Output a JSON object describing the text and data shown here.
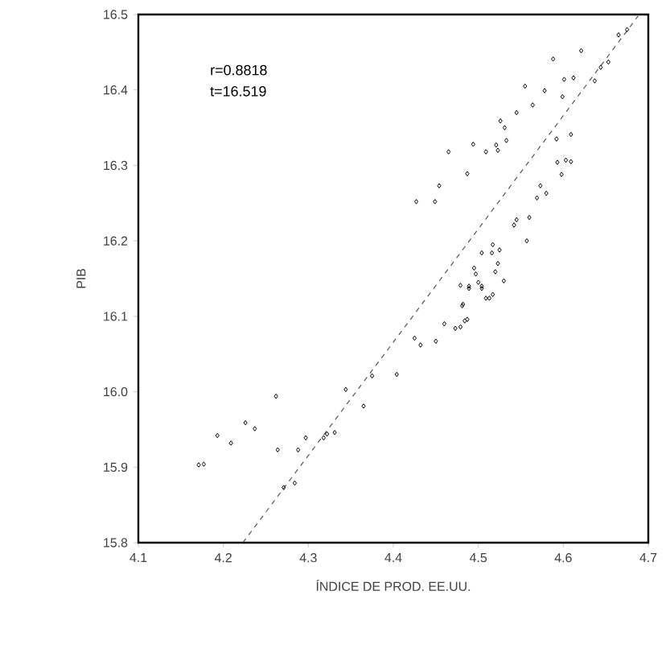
{
  "chart_data": {
    "type": "scatter",
    "xlabel": "ÍNDICE DE PROD. EE.UU.",
    "ylabel": "PIB",
    "annotations": [
      "r=0.8818",
      "t=16.519"
    ],
    "xlim": [
      4.1,
      4.7
    ],
    "ylim": [
      15.8,
      16.5
    ],
    "xticks": [
      4.1,
      4.2,
      4.3,
      4.4,
      4.5,
      4.6,
      4.7
    ],
    "yticks": [
      15.8,
      15.9,
      {
        "value": 16.0,
        "label": "16.0"
      },
      16.1,
      16.2,
      16.3,
      16.4,
      16.5
    ],
    "marker": "diamond",
    "series": [
      {
        "color": "#000000",
        "x": [
          4.171,
          4.177,
          4.193,
          4.209,
          4.226,
          4.237,
          4.262,
          4.264,
          4.271,
          4.284,
          4.288,
          4.297,
          4.318,
          4.322,
          4.331,
          4.344,
          4.365,
          4.375,
          4.404,
          4.425,
          4.432,
          4.45,
          4.46,
          4.473,
          4.479,
          4.484,
          4.487,
          4.482,
          4.513,
          4.489,
          4.504,
          4.427,
          4.449,
          4.454,
          4.465,
          4.487,
          4.494,
          4.509,
          4.521,
          4.523,
          4.533,
          4.526,
          4.531,
          4.545,
          4.555,
          4.564,
          4.578,
          4.588,
          4.599,
          4.601,
          4.612,
          4.621,
          4.637,
          4.644,
          4.653,
          4.665,
          4.675,
          4.609,
          4.592,
          4.593,
          4.603,
          4.609,
          4.598,
          4.573,
          4.58,
          4.569,
          4.56,
          4.545,
          4.542,
          4.557,
          4.517,
          4.516,
          4.525,
          4.504,
          4.523,
          4.495,
          4.497,
          4.52,
          4.53,
          4.479,
          4.489,
          4.5,
          4.504,
          4.517,
          4.509,
          4.481
        ],
        "values": [
          15.903,
          15.904,
          15.942,
          15.932,
          15.959,
          15.951,
          15.994,
          15.923,
          15.873,
          15.879,
          15.923,
          15.939,
          15.939,
          15.944,
          15.946,
          16.003,
          15.981,
          16.021,
          16.023,
          16.071,
          16.062,
          16.067,
          16.09,
          16.084,
          16.086,
          16.094,
          16.096,
          16.116,
          16.124,
          16.137,
          16.137,
          16.252,
          16.252,
          16.273,
          16.318,
          16.289,
          16.328,
          16.318,
          16.327,
          16.32,
          16.333,
          16.359,
          16.35,
          16.37,
          16.405,
          16.38,
          16.399,
          16.441,
          16.391,
          16.414,
          16.416,
          16.452,
          16.412,
          16.43,
          16.437,
          16.473,
          16.48,
          16.341,
          16.335,
          16.304,
          16.307,
          16.305,
          16.288,
          16.273,
          16.263,
          16.257,
          16.231,
          16.228,
          16.221,
          16.2,
          16.195,
          16.184,
          16.188,
          16.184,
          16.17,
          16.164,
          16.156,
          16.159,
          16.147,
          16.141,
          16.14,
          16.145,
          16.14,
          16.129,
          16.124,
          16.114
        ]
      },
      {
        "type": "line",
        "color": "#555555",
        "line_style": "dashed",
        "marker": "none",
        "x": [
          4.223,
          4.688
        ],
        "values": [
          15.8,
          16.498
        ]
      }
    ]
  }
}
